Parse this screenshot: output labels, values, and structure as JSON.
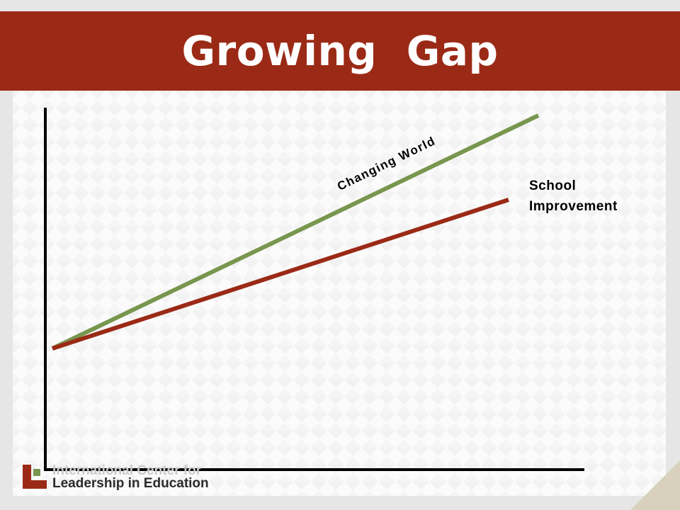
{
  "slide": {
    "title": "Growing  Gap"
  },
  "chart_data": {
    "type": "line",
    "title": "Growing  Gap",
    "xlabel": "",
    "ylabel": "",
    "grid": false,
    "series": [
      {
        "name": "Changing World",
        "color": "#78964e",
        "values": [
          0,
          47
        ]
      },
      {
        "name": "School\nImprovement",
        "color": "#9a2a16",
        "values": [
          0,
          30
        ]
      }
    ],
    "x": [
      0,
      1
    ]
  },
  "logo": {
    "line1": "International Center for",
    "line2": "Leadership in Education",
    "mark_colors": [
      "#9a2a16",
      "#78964e"
    ]
  },
  "colors": {
    "title_bar": "#9a2a16",
    "axis": "#000000",
    "background": "#e6e6e6"
  }
}
